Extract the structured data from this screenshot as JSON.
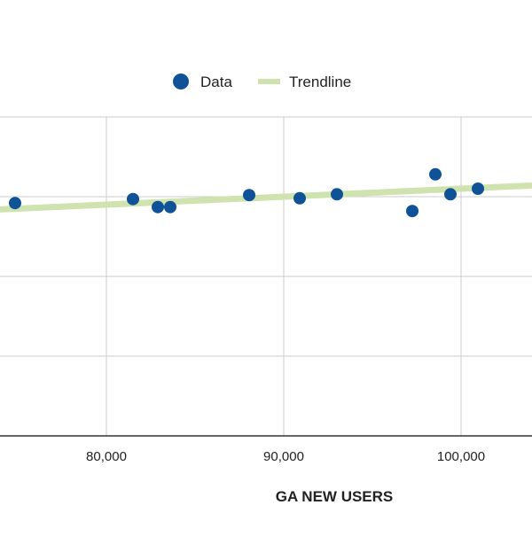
{
  "chart_data": {
    "type": "scatter",
    "xlabel": "GA NEW USERS",
    "ylabel": "",
    "xlim": [
      74000,
      104000
    ],
    "ylim": [
      0,
      4
    ],
    "x_ticks": [
      80000,
      90000,
      100000
    ],
    "x_tick_labels": [
      "80,000",
      "90,000",
      "100,000"
    ],
    "y_gridlines": [
      0,
      1,
      2,
      3,
      4
    ],
    "grid": true,
    "legend_position": "top",
    "series": [
      {
        "name": "Data",
        "color": "#0f5297",
        "points": [
          {
            "x": 74850,
            "y": 2.92
          },
          {
            "x": 81500,
            "y": 2.97
          },
          {
            "x": 82900,
            "y": 2.87
          },
          {
            "x": 83600,
            "y": 2.87
          },
          {
            "x": 88050,
            "y": 3.02
          },
          {
            "x": 90900,
            "y": 2.98
          },
          {
            "x": 93000,
            "y": 3.03
          },
          {
            "x": 97250,
            "y": 2.82
          },
          {
            "x": 98550,
            "y": 3.28
          },
          {
            "x": 99400,
            "y": 3.03
          },
          {
            "x": 100950,
            "y": 3.1
          }
        ]
      },
      {
        "name": "Trendline",
        "color": "#cfe3ae",
        "line": {
          "x": [
            74000,
            104000
          ],
          "y": [
            2.84,
            3.14
          ]
        }
      }
    ]
  }
}
